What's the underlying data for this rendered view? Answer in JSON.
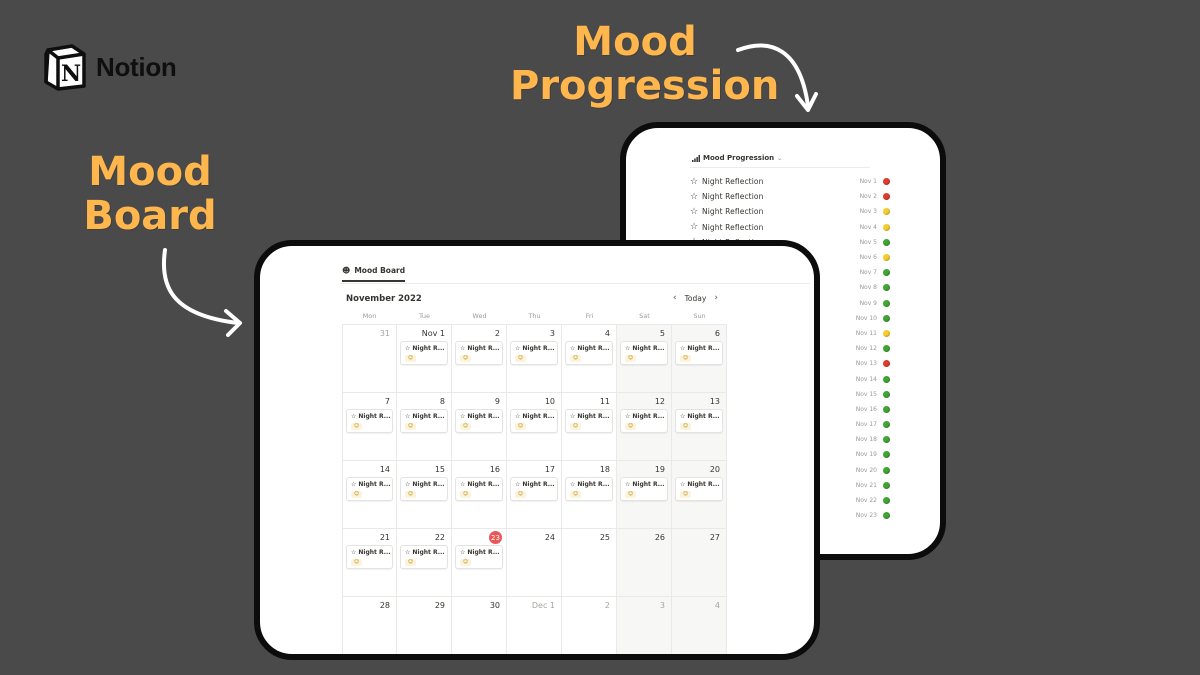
{
  "brand": {
    "name": "Notion",
    "logo_icon": "notion-logo-icon"
  },
  "headings": {
    "progression": [
      "Mood",
      "Progression"
    ],
    "board": [
      "Mood",
      "Board"
    ]
  },
  "colors": {
    "background": "#4a4a4a",
    "accent": "#ffb64d",
    "mood_red": "#e03b2c",
    "mood_yellow": "#f5cd2e",
    "mood_green": "#3fa535",
    "today": "#eb5757"
  },
  "progression": {
    "view_title": "Mood Progression",
    "view_icon": "bar-chart-icon",
    "items": [
      {
        "title": "Night Reflection",
        "date": "Nov 1",
        "mood": "red"
      },
      {
        "title": "Night Reflection",
        "date": "Nov 2",
        "mood": "red"
      },
      {
        "title": "Night Reflection",
        "date": "Nov 3",
        "mood": "yellow"
      },
      {
        "title": "Night Reflection",
        "date": "Nov 4",
        "mood": "yellow"
      },
      {
        "title": "Night Reflection",
        "date": "Nov 5",
        "mood": "green"
      },
      {
        "title": "",
        "date": "Nov 6",
        "mood": "yellow"
      },
      {
        "title": "",
        "date": "Nov 7",
        "mood": "green"
      },
      {
        "title": "",
        "date": "Nov 8",
        "mood": "green"
      },
      {
        "title": "",
        "date": "Nov 9",
        "mood": "green"
      },
      {
        "title": "",
        "date": "Nov 10",
        "mood": "green"
      },
      {
        "title": "",
        "date": "Nov 11",
        "mood": "yellow"
      },
      {
        "title": "",
        "date": "Nov 12",
        "mood": "green"
      },
      {
        "title": "",
        "date": "Nov 13",
        "mood": "red"
      },
      {
        "title": "",
        "date": "Nov 14",
        "mood": "green"
      },
      {
        "title": "",
        "date": "Nov 15",
        "mood": "green"
      },
      {
        "title": "",
        "date": "Nov 16",
        "mood": "green"
      },
      {
        "title": "",
        "date": "Nov 17",
        "mood": "green"
      },
      {
        "title": "",
        "date": "Nov 18",
        "mood": "green"
      },
      {
        "title": "",
        "date": "Nov 19",
        "mood": "green"
      },
      {
        "title": "",
        "date": "Nov 20",
        "mood": "green"
      },
      {
        "title": "",
        "date": "Nov 21",
        "mood": "green"
      },
      {
        "title": "",
        "date": "Nov 22",
        "mood": "green"
      },
      {
        "title": "",
        "date": "Nov 23",
        "mood": "green"
      }
    ]
  },
  "board": {
    "tab_label": "Mood Board",
    "tab_icon": "smiley-icon",
    "month": "November 2022",
    "today_label": "Today",
    "weekdays": [
      "Mon",
      "Tue",
      "Wed",
      "Thu",
      "Fri",
      "Sat",
      "Sun"
    ],
    "card_label": "Night R...",
    "weeks": [
      [
        {
          "day": "31",
          "muted": true,
          "entry": false
        },
        {
          "day": "Nov 1",
          "muted": false,
          "entry": true
        },
        {
          "day": "2",
          "muted": false,
          "entry": true
        },
        {
          "day": "3",
          "muted": false,
          "entry": true
        },
        {
          "day": "4",
          "muted": false,
          "entry": true
        },
        {
          "day": "5",
          "muted": false,
          "entry": true
        },
        {
          "day": "6",
          "muted": false,
          "entry": true
        }
      ],
      [
        {
          "day": "7",
          "muted": false,
          "entry": true
        },
        {
          "day": "8",
          "muted": false,
          "entry": true
        },
        {
          "day": "9",
          "muted": false,
          "entry": true
        },
        {
          "day": "10",
          "muted": false,
          "entry": true
        },
        {
          "day": "11",
          "muted": false,
          "entry": true
        },
        {
          "day": "12",
          "muted": false,
          "entry": true
        },
        {
          "day": "13",
          "muted": false,
          "entry": true
        }
      ],
      [
        {
          "day": "14",
          "muted": false,
          "entry": true
        },
        {
          "day": "15",
          "muted": false,
          "entry": true
        },
        {
          "day": "16",
          "muted": false,
          "entry": true
        },
        {
          "day": "17",
          "muted": false,
          "entry": true
        },
        {
          "day": "18",
          "muted": false,
          "entry": true
        },
        {
          "day": "19",
          "muted": false,
          "entry": true
        },
        {
          "day": "20",
          "muted": false,
          "entry": true
        }
      ],
      [
        {
          "day": "21",
          "muted": false,
          "entry": true
        },
        {
          "day": "22",
          "muted": false,
          "entry": true
        },
        {
          "day": "23",
          "muted": false,
          "entry": true,
          "today": true
        },
        {
          "day": "24",
          "muted": false,
          "entry": false
        },
        {
          "day": "25",
          "muted": false,
          "entry": false
        },
        {
          "day": "26",
          "muted": false,
          "entry": false
        },
        {
          "day": "27",
          "muted": false,
          "entry": false
        }
      ],
      [
        {
          "day": "28",
          "muted": false,
          "entry": false
        },
        {
          "day": "29",
          "muted": false,
          "entry": false
        },
        {
          "day": "30",
          "muted": false,
          "entry": false
        },
        {
          "day": "Dec 1",
          "muted": true,
          "entry": false
        },
        {
          "day": "2",
          "muted": true,
          "entry": false
        },
        {
          "day": "3",
          "muted": true,
          "entry": false
        },
        {
          "day": "4",
          "muted": true,
          "entry": false
        }
      ]
    ]
  }
}
